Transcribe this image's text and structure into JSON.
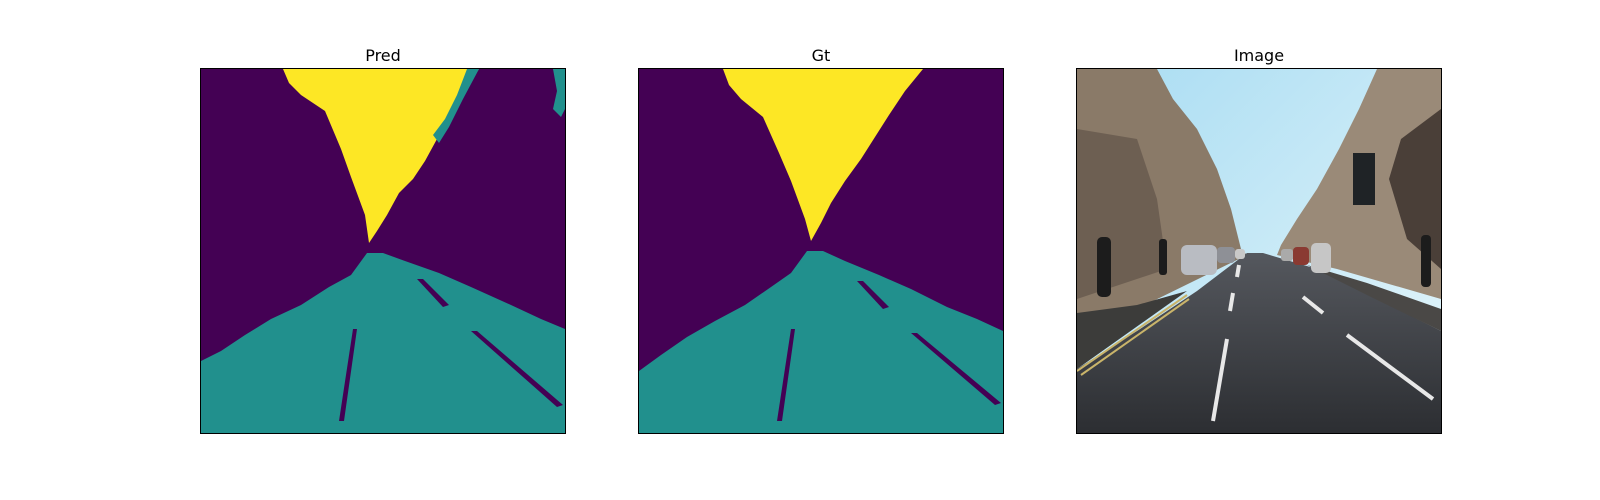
{
  "panels": [
    {
      "id": "pred",
      "title": "Pred"
    },
    {
      "id": "gt",
      "title": "Gt"
    },
    {
      "id": "image",
      "title": "Image"
    }
  ],
  "colors": {
    "background_class": "#440154",
    "road_class": "#21908d",
    "sky_class": "#fde725"
  }
}
